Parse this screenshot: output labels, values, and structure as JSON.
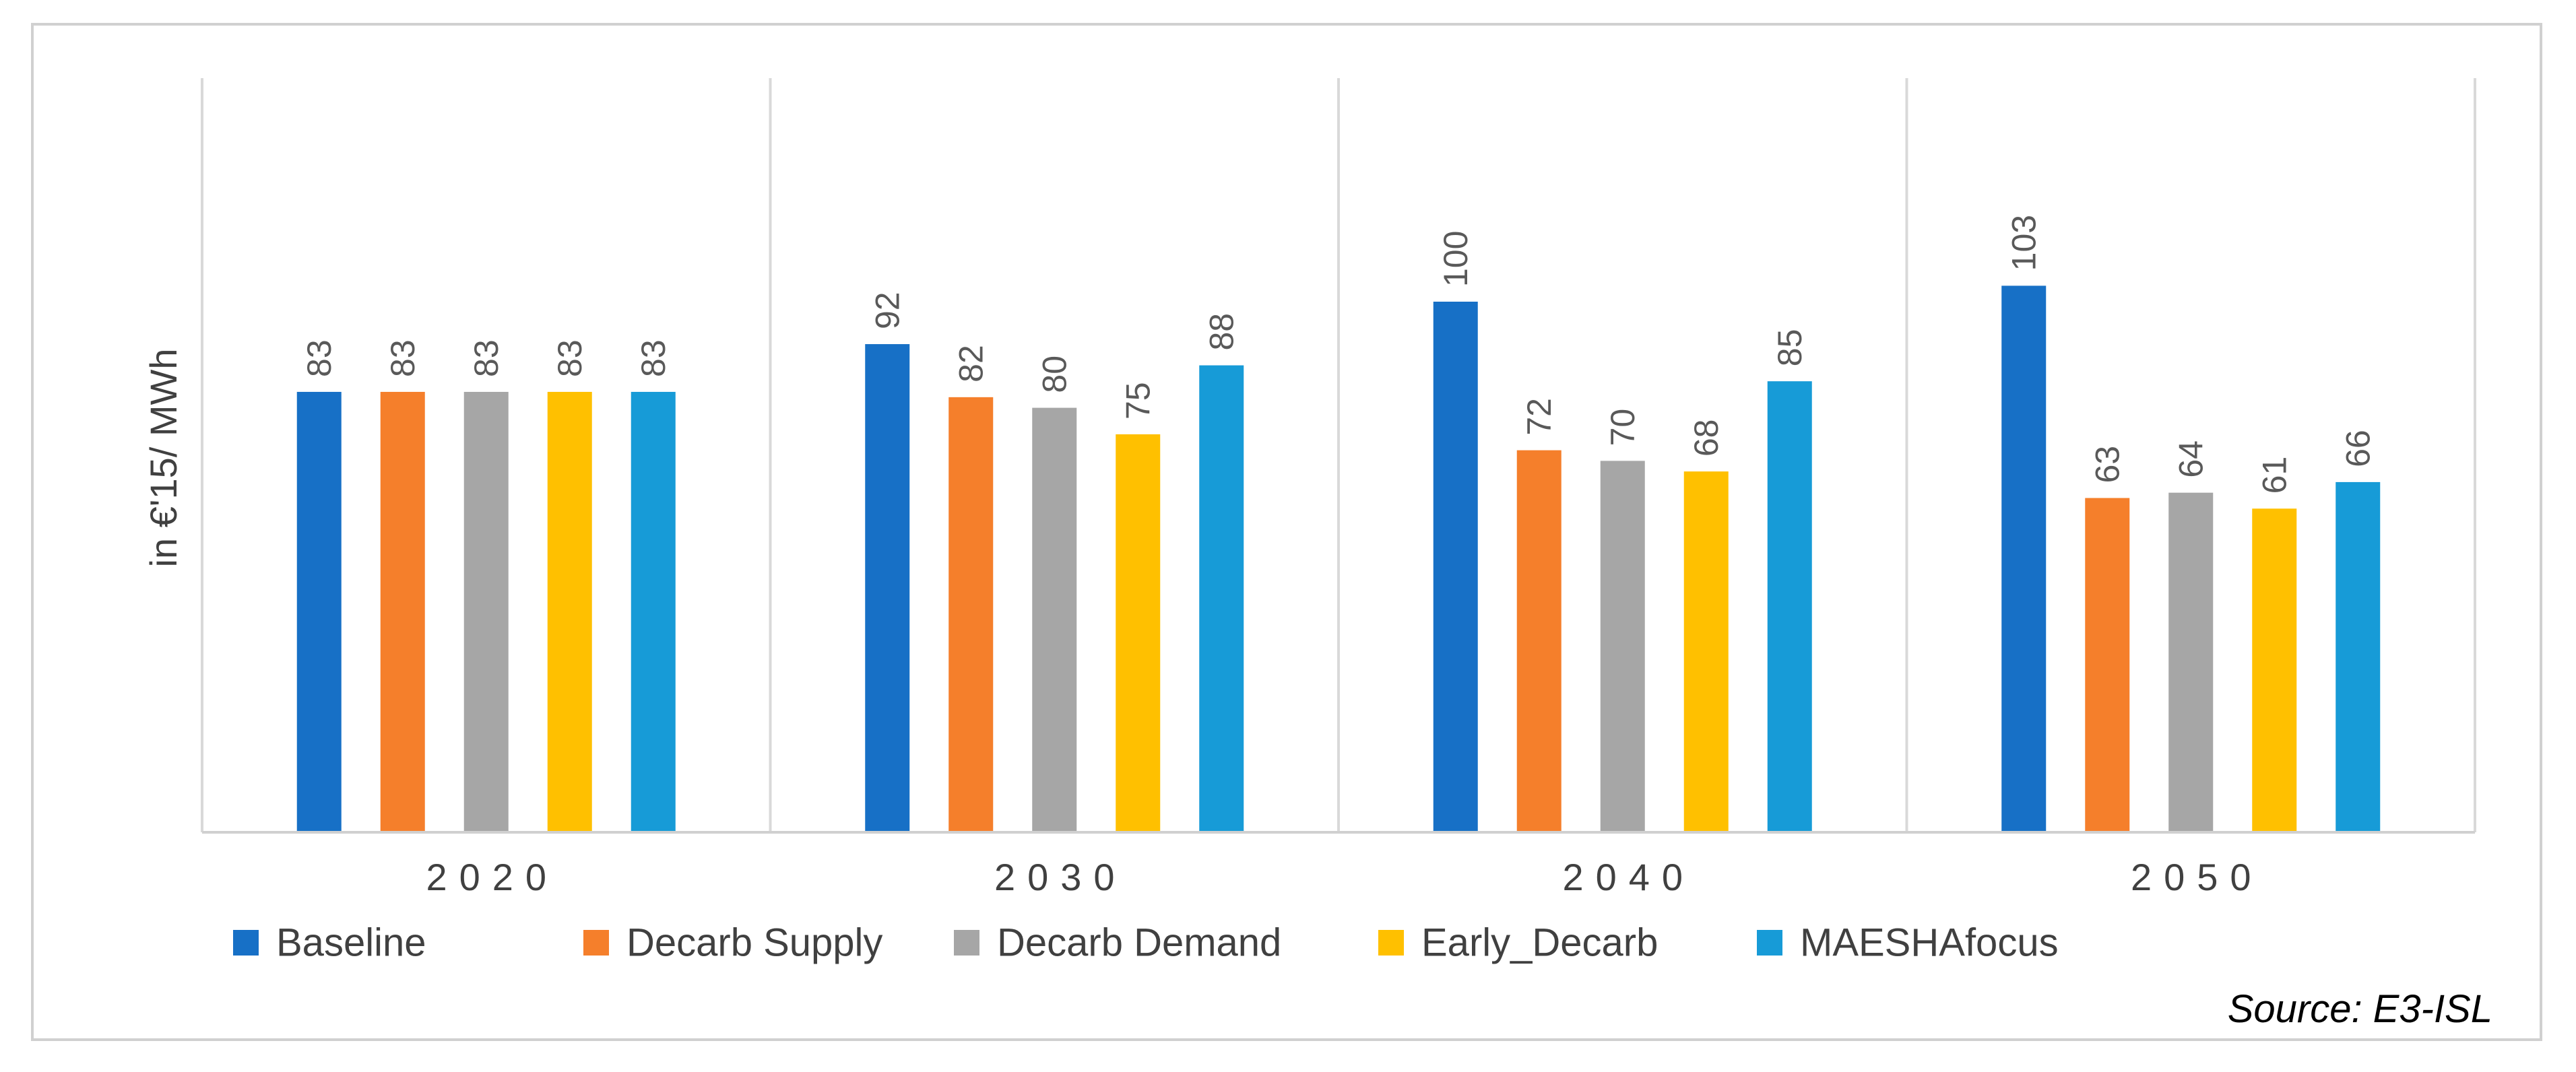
{
  "chart_data": {
    "type": "bar",
    "title": "",
    "xlabel": "",
    "ylabel": "in €'15/ MWh",
    "categories": [
      "2020",
      "2030",
      "2040",
      "2050"
    ],
    "series": [
      {
        "name": "Baseline",
        "color": "#1770C6",
        "values": [
          83,
          92,
          100,
          103
        ]
      },
      {
        "name": "Decarb Supply",
        "color": "#F57F2B",
        "values": [
          83,
          82,
          72,
          63
        ]
      },
      {
        "name": "Decarb Demand",
        "color": "#A6A6A6",
        "values": [
          83,
          80,
          70,
          64
        ]
      },
      {
        "name": "Early_Decarb",
        "color": "#FFC000",
        "values": [
          83,
          75,
          68,
          61
        ]
      },
      {
        "name": "MAESHAfocus",
        "color": "#179BD7",
        "values": [
          83,
          88,
          85,
          66
        ]
      }
    ],
    "ylim": [
      0,
      120
    ],
    "grid": false,
    "legend": "bottom",
    "source": "Source: E3-ISL"
  }
}
